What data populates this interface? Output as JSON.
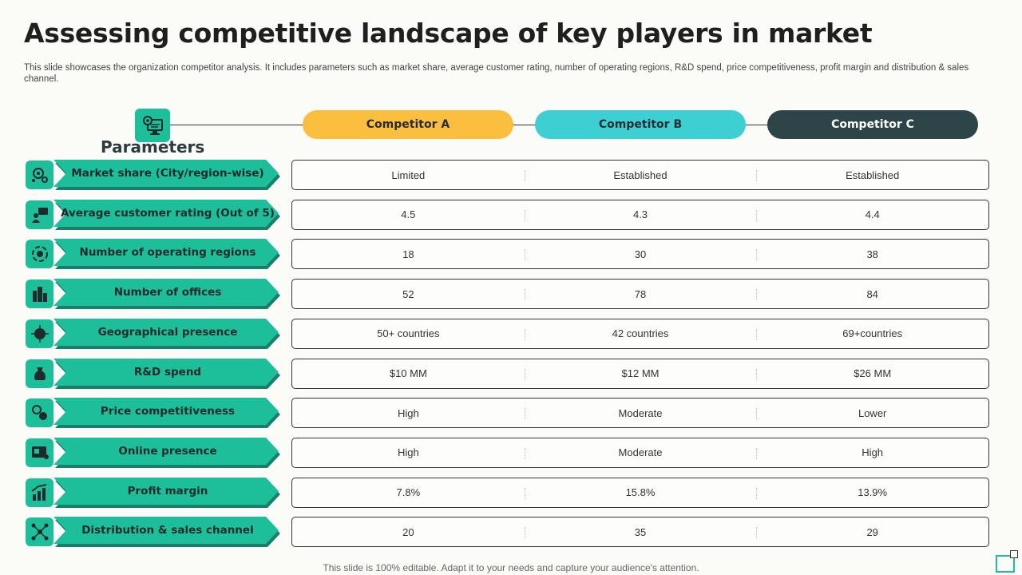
{
  "title": "Assessing competitive landscape of key players in market",
  "subtitle": "This slide showcases the organization competitor analysis. It includes parameters such as market share, average customer rating, number of operating regions, R&D spend, price competitiveness, profit margin and distribution & sales channel.",
  "parameters_label": "Parameters",
  "competitors": [
    "Competitor A",
    "Competitor B",
    "Competitor C"
  ],
  "colors": {
    "accent": "#1dbf9a",
    "competitor_a": "#fbbf3f",
    "competitor_b": "#3ecfd2",
    "competitor_c": "#2d4449"
  },
  "rows": [
    {
      "icon": "market-share-icon",
      "label": "Market share (City/region-wise)",
      "values": [
        "Limited",
        "Established",
        "Established"
      ]
    },
    {
      "icon": "customer-rating-icon",
      "label": "Average customer rating (Out of 5)",
      "values": [
        "4.5",
        "4.3",
        "4.4"
      ]
    },
    {
      "icon": "regions-icon",
      "label": "Number of operating regions",
      "values": [
        "18",
        "30",
        "38"
      ]
    },
    {
      "icon": "offices-icon",
      "label": "Number of offices",
      "values": [
        "52",
        "78",
        "84"
      ]
    },
    {
      "icon": "globe-icon",
      "label": "Geographical presence",
      "values": [
        "50+ countries",
        "42 countries",
        "69+countries"
      ]
    },
    {
      "icon": "money-bag-icon",
      "label": "R&D spend",
      "values": [
        "$10 MM",
        "$12 MM",
        "$26 MM"
      ]
    },
    {
      "icon": "price-icon",
      "label": "Price competitiveness",
      "values": [
        "High",
        "Moderate",
        "Lower"
      ]
    },
    {
      "icon": "online-icon",
      "label": "Online presence",
      "values": [
        "High",
        "Moderate",
        "High"
      ]
    },
    {
      "icon": "profit-chart-icon",
      "label": "Profit margin",
      "values": [
        "7.8%",
        "15.8%",
        "13.9%"
      ]
    },
    {
      "icon": "network-icon",
      "label": "Distribution & sales channel",
      "values": [
        "20",
        "35",
        "29"
      ]
    }
  ],
  "footer": "This slide is 100% editable. Adapt it to your needs and capture your audience's attention."
}
